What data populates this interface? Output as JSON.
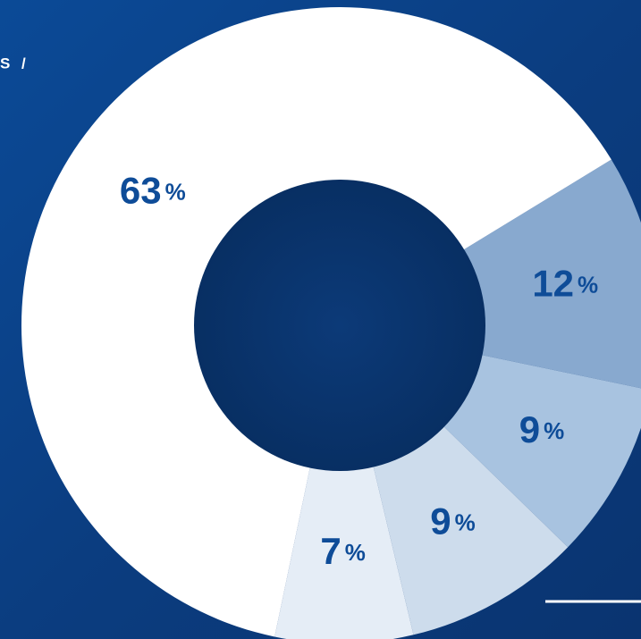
{
  "chart_data": {
    "type": "donut",
    "title": "S /",
    "categories": [
      null,
      null,
      null,
      null,
      null
    ],
    "values": [
      12,
      9,
      9,
      7,
      63
    ],
    "unit": "%",
    "colors": [
      "#88a9cf",
      "#a8c3e0",
      "#cddcec",
      "#e5edf6",
      "#ffffff"
    ]
  }
}
